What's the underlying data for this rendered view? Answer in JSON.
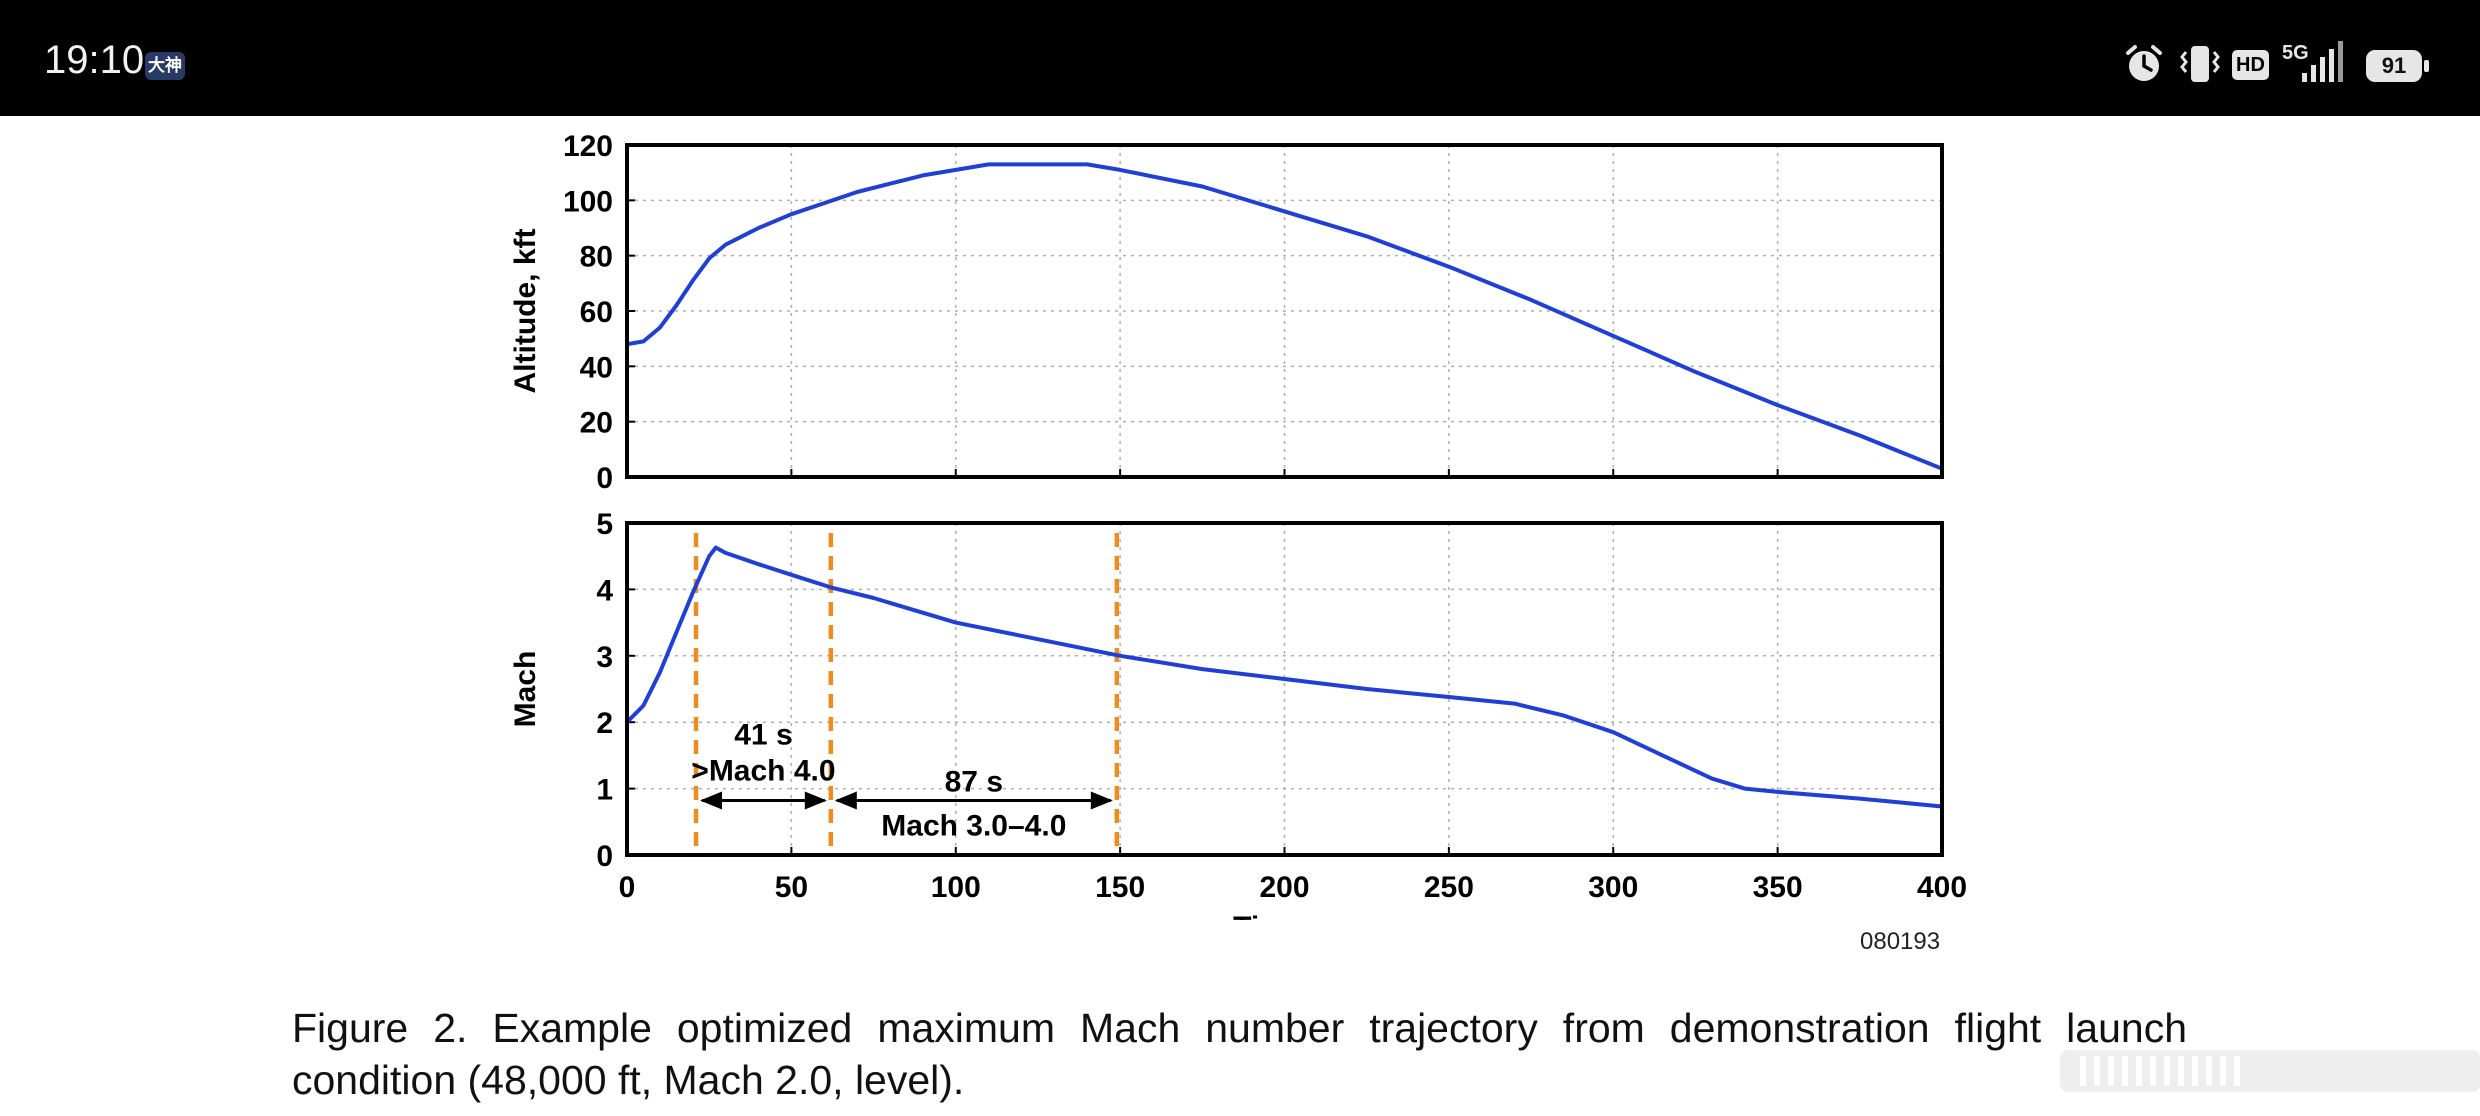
{
  "status_bar": {
    "time": "19:10",
    "app_badge": "大神",
    "network": "5G",
    "hd": "HD",
    "battery": "91",
    "icons": [
      "alarm-icon",
      "vibrate-icon",
      "hd-icon",
      "signal-icon",
      "battery-icon"
    ]
  },
  "figure": {
    "id": "080193",
    "caption": "Figure 2. Example optimized maximum Mach number trajectory from demonstration flight launch condition (48,000 ft, Mach 2.0, level)."
  },
  "colors": {
    "line": "#1f3fd6",
    "marker": "#f08c1e",
    "grid": "#b0b0b0"
  },
  "chart_data": [
    {
      "type": "line",
      "name": "altitude",
      "ylabel": "Altitude, kft",
      "xlim": [
        0,
        400
      ],
      "ylim": [
        0,
        120
      ],
      "xticks": [
        0,
        50,
        100,
        150,
        200,
        250,
        300,
        350,
        400
      ],
      "yticks": [
        0,
        20,
        40,
        60,
        80,
        100,
        120
      ],
      "grid": true,
      "x": [
        0,
        5,
        10,
        15,
        20,
        25,
        30,
        35,
        40,
        50,
        60,
        70,
        80,
        90,
        100,
        110,
        120,
        130,
        140,
        150,
        175,
        200,
        225,
        250,
        275,
        300,
        325,
        350,
        375,
        400
      ],
      "y": [
        48,
        49,
        54,
        62,
        71,
        79,
        84,
        87,
        90,
        95,
        99,
        103,
        106,
        109,
        111,
        113,
        113,
        113,
        113,
        111,
        105,
        96,
        87,
        76,
        64,
        51,
        38,
        26,
        15,
        3
      ]
    },
    {
      "type": "line",
      "name": "mach",
      "ylabel": "Mach",
      "xlabel": "Time, s",
      "xlim": [
        0,
        400
      ],
      "ylim": [
        0,
        5
      ],
      "xticks": [
        0,
        50,
        100,
        150,
        200,
        250,
        300,
        350,
        400
      ],
      "yticks": [
        0,
        1,
        2,
        3,
        4,
        5
      ],
      "grid": true,
      "x": [
        0,
        5,
        10,
        15,
        20,
        25,
        27,
        30,
        40,
        50,
        62,
        75,
        100,
        125,
        150,
        175,
        200,
        225,
        250,
        270,
        285,
        300,
        315,
        330,
        340,
        350,
        375,
        400
      ],
      "y": [
        2.0,
        2.25,
        2.75,
        3.35,
        3.95,
        4.5,
        4.63,
        4.55,
        4.38,
        4.22,
        4.03,
        3.87,
        3.5,
        3.25,
        3.0,
        2.8,
        2.65,
        2.5,
        2.38,
        2.28,
        2.1,
        1.85,
        1.5,
        1.15,
        1.0,
        0.95,
        0.85,
        0.73
      ],
      "markers_x": [
        21,
        62,
        149
      ],
      "annotations": [
        {
          "lines": [
            "41 s",
            ">Mach 4.0"
          ],
          "from": 21,
          "to": 62,
          "y": 0.82
        },
        {
          "lines": [
            "87 s",
            "Mach 3.0–4.0"
          ],
          "from": 62,
          "to": 149,
          "y": 0.82
        }
      ]
    }
  ]
}
